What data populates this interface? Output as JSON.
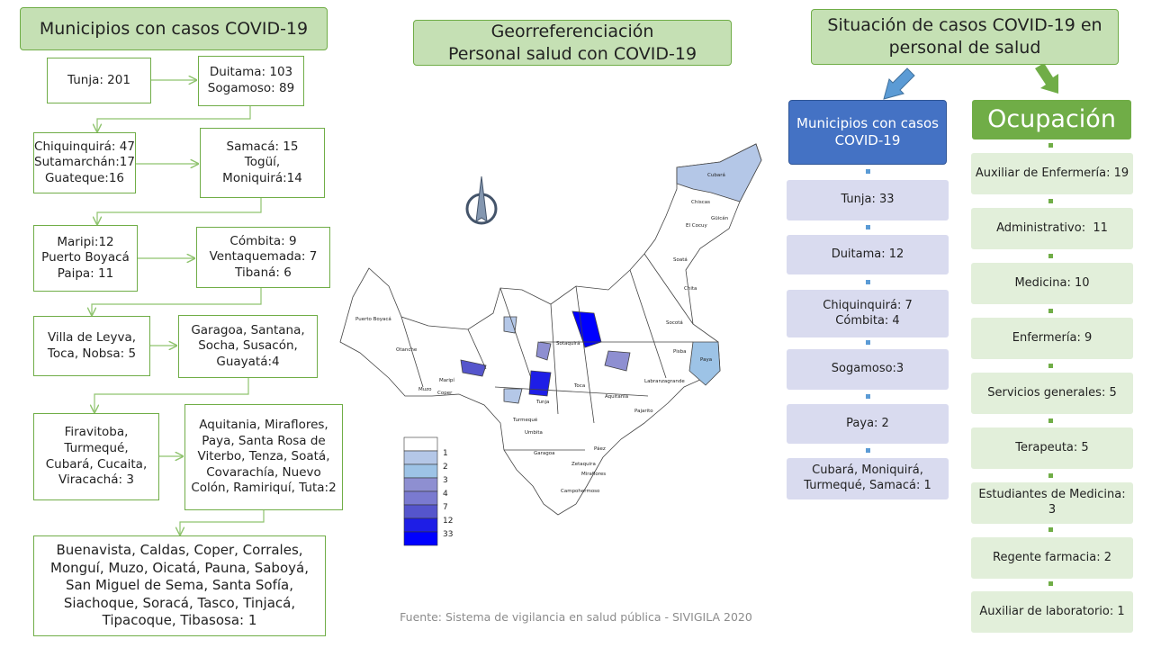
{
  "left": {
    "title": "Municipios con casos COVID-19",
    "boxes": [
      [
        "Tunja: 201"
      ],
      [
        "Duitama: 103",
        "Sogamoso: 89"
      ],
      [
        "Chiquinquirá: 47",
        "Sutamarchán:17",
        "Guateque:16"
      ],
      [
        "Samacá: 15",
        "Togüí,",
        "Moniquirá:14"
      ],
      [
        "Maripi:12",
        "Puerto Boyacá",
        "Paipa: 11"
      ],
      [
        "Cómbita: 9",
        "Ventaquemada: 7",
        "Tibaná: 6"
      ],
      [
        "Villa de Leyva,",
        "Toca, Nobsa: 5"
      ],
      [
        "Garagoa, Santana,",
        "Socha, Susacón,",
        "Guayatá:4"
      ],
      [
        "Firavitoba,",
        "Turmequé,",
        "Cubará, Cucaita,",
        "Viracachá: 3"
      ],
      [
        "Aquitania, Miraflores,",
        "Paya, Santa Rosa de",
        "Viterbo, Tenza, Soatá,",
        "Covarachía, Nuevo",
        "Colón, Ramiriquí, Tuta:2"
      ],
      [
        "Buenavista, Caldas, Coper, Corrales,",
        "Monguí, Muzo, Oicatá, Pauna, Saboyá,",
        "San Miguel de Sema, Santa Sofía,",
        "Siachoque, Soracá, Tasco, Tinjacá,",
        "Tipacoque, Tibasosa: 1"
      ]
    ]
  },
  "center": {
    "title": [
      "Georreferenciación",
      "Personal salud con COVID-19"
    ],
    "map_labels": [
      "Puerto Boyacá",
      "Cubará",
      "Güicán",
      "El Cocuy",
      "Chita",
      "Socotá",
      "Pisba",
      "Paya",
      "Labranzagrande",
      "Aquitania",
      "Pajarito",
      "Tunja",
      "Toca",
      "Páez",
      "Miraflores",
      "Campohermoso",
      "Garagoa",
      "Chiscas",
      "Soatá",
      "Sotaquirá",
      "Otanche",
      "Muzo",
      "Coper",
      "Maripí",
      "Zetaquira",
      "Turmequé",
      "Umbita"
    ],
    "legend": {
      "base_color": "#ffffff",
      "items": [
        {
          "value": 1,
          "color": "#b4c7e7"
        },
        {
          "value": 2,
          "color": "#9dc3e6"
        },
        {
          "value": 3,
          "color": "#8e8fd1"
        },
        {
          "value": 4,
          "color": "#7a7ad0"
        },
        {
          "value": 7,
          "color": "#5555cc"
        },
        {
          "value": 12,
          "color": "#1e1ee6"
        },
        {
          "value": 33,
          "color": "#0000ff"
        }
      ]
    },
    "source": "Fuente: Sistema de vigilancia en salud pública - SIVIGILA 2020"
  },
  "right": {
    "title": [
      "Situación de casos COVID-19 en",
      "personal de salud"
    ],
    "municipios": {
      "title": [
        "Municipios con casos",
        "COVID-19"
      ],
      "items": [
        [
          "Tunja: 33"
        ],
        [
          "Duitama: 12"
        ],
        [
          "Chiquinquirá: 7",
          "Cómbita: 4"
        ],
        [
          "Sogamoso:3"
        ],
        [
          "Paya: 2"
        ],
        [
          "Cubará, Moniquirá,",
          "Turmequé, Samacá: 1"
        ]
      ]
    },
    "ocupacion": {
      "title": "Ocupación",
      "items": [
        [
          "Auxiliar de Enfermería: 19"
        ],
        [
          "Administrativo:  11"
        ],
        [
          "Medicina: 10"
        ],
        [
          "Enfermería: 9"
        ],
        [
          "Servicios generales: 5"
        ],
        [
          "Terapeuta: 5"
        ],
        [
          "Estudiantes de Medicina:",
          "3"
        ],
        [
          "Regente farmacia: 2"
        ],
        [
          "Auxiliar de laboratorio: 1"
        ]
      ]
    }
  }
}
